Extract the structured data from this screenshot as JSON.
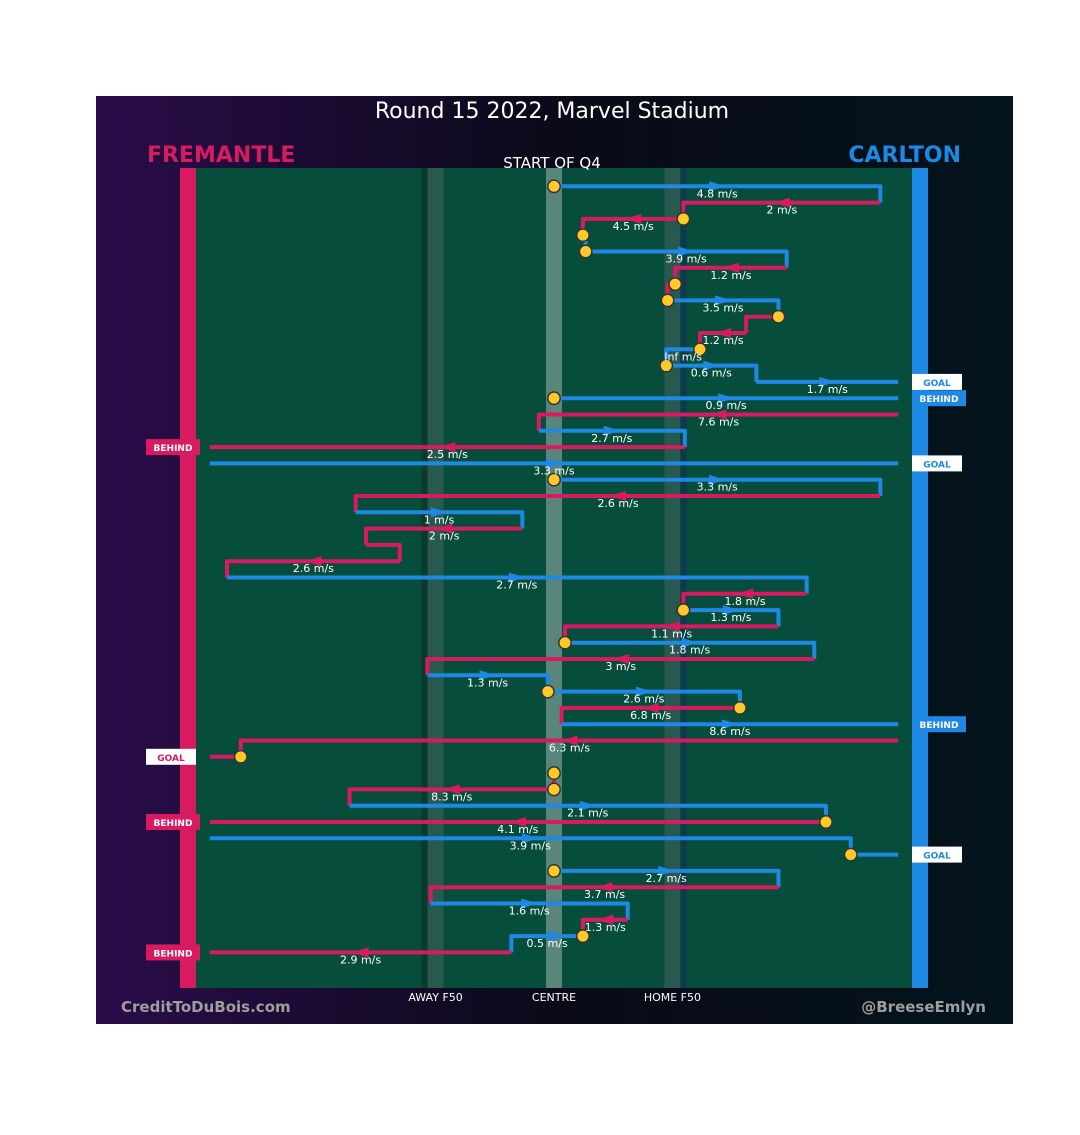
{
  "colors": {
    "home": "#d81b60",
    "away": "#1e88e5",
    "field": "#064e3b",
    "ball": "#ffca28"
  },
  "chart_data": {
    "type": "line",
    "title": "Round 15 2022, Marvel Stadium",
    "subtitle": "START OF Q4",
    "teams": {
      "left": "FREMANTLE",
      "right": "CARLTON"
    },
    "credits": {
      "left": "CreditToDuBois.com",
      "right": "@BreeseEmlyn"
    },
    "xticks": [
      {
        "x": 0.328,
        "label": "AWAY F50"
      },
      {
        "x": 0.5,
        "label": "CENTRE"
      },
      {
        "x": 0.672,
        "label": "HOME F50"
      }
    ],
    "x_domain": [
      -0.02,
      1.02
    ],
    "chains": [
      {
        "team": "C",
        "seq": [
          [
            0.5,
            1
          ],
          [
            0.974,
            1
          ],
          [
            0.974,
            2
          ]
        ],
        "speed": "4.8 m/s",
        "start_dot": true
      },
      {
        "team": "F",
        "seq": [
          [
            0.974,
            2
          ],
          [
            0.688,
            2
          ],
          [
            0.688,
            3
          ]
        ],
        "speed": "2 m/s"
      },
      {
        "team": "F",
        "seq": [
          [
            0.688,
            3
          ],
          [
            0.542,
            3
          ],
          [
            0.542,
            4
          ]
        ],
        "speed": "4.5 m/s",
        "start_dot": true
      },
      {
        "team": "C",
        "seq": [
          [
            0.542,
            4
          ],
          [
            0.546,
            4
          ],
          [
            0.546,
            5
          ]
        ],
        "speed": "",
        "start_dot": true
      },
      {
        "team": "C",
        "seq": [
          [
            0.546,
            5
          ],
          [
            0.838,
            5
          ],
          [
            0.838,
            6
          ]
        ],
        "speed": "3.9 m/s",
        "start_dot": true
      },
      {
        "team": "F",
        "seq": [
          [
            0.838,
            6
          ],
          [
            0.676,
            6
          ],
          [
            0.676,
            7
          ]
        ],
        "speed": "1.2 m/s"
      },
      {
        "team": "F",
        "seq": [
          [
            0.676,
            7
          ],
          [
            0.665,
            7
          ],
          [
            0.665,
            8
          ]
        ],
        "speed": "",
        "start_dot": true
      },
      {
        "team": "C",
        "seq": [
          [
            0.665,
            8
          ],
          [
            0.826,
            8
          ],
          [
            0.826,
            9
          ]
        ],
        "speed": "3.5 m/s",
        "start_dot": true
      },
      {
        "team": "F",
        "seq": [
          [
            0.826,
            9
          ],
          [
            0.779,
            9
          ],
          [
            0.779,
            10
          ]
        ],
        "speed": "",
        "start_dot": true
      },
      {
        "team": "F",
        "seq": [
          [
            0.779,
            10
          ],
          [
            0.712,
            10
          ],
          [
            0.712,
            11
          ]
        ],
        "speed": "1.2 m/s"
      },
      {
        "team": "C",
        "seq": [
          [
            0.712,
            11
          ],
          [
            0.663,
            11
          ],
          [
            0.663,
            12
          ]
        ],
        "speed": "Inf m/s",
        "start_dot": true
      },
      {
        "team": "C",
        "seq": [
          [
            0.663,
            12
          ],
          [
            0.794,
            12
          ],
          [
            0.794,
            13
          ]
        ],
        "speed": "0.6 m/s",
        "start_dot": true
      },
      {
        "team": "C",
        "seq": [
          [
            0.794,
            13
          ],
          [
            1.0,
            13
          ]
        ],
        "speed": "1.7 m/s",
        "end_label": "GOAL"
      },
      {
        "team": "C",
        "seq": [
          [
            0.5,
            14
          ],
          [
            1.0,
            14
          ]
        ],
        "speed": "0.9 m/s",
        "start_dot": true,
        "end_label": "BEHIND"
      },
      {
        "team": "F",
        "seq": [
          [
            1.0,
            15
          ],
          [
            0.478,
            15
          ],
          [
            0.478,
            16
          ]
        ],
        "speed": "7.6 m/s"
      },
      {
        "team": "C",
        "seq": [
          [
            0.478,
            16
          ],
          [
            0.69,
            16
          ],
          [
            0.69,
            17
          ]
        ],
        "speed": "2.7 m/s"
      },
      {
        "team": "F",
        "seq": [
          [
            0.69,
            17
          ],
          [
            0.0,
            17
          ]
        ],
        "speed": "2.5 m/s",
        "end_label": "BEHIND"
      },
      {
        "team": "C",
        "seq": [
          [
            0.0,
            18
          ],
          [
            1.0,
            18
          ]
        ],
        "speed": "3.3 m/s",
        "end_label": "GOAL"
      },
      {
        "team": "C",
        "seq": [
          [
            0.5,
            19
          ],
          [
            0.974,
            19
          ],
          [
            0.974,
            20
          ]
        ],
        "speed": "3.3 m/s",
        "start_dot": true
      },
      {
        "team": "F",
        "seq": [
          [
            0.974,
            20
          ],
          [
            0.212,
            20
          ],
          [
            0.212,
            21
          ]
        ],
        "speed": "2.6 m/s"
      },
      {
        "team": "C",
        "seq": [
          [
            0.212,
            21
          ],
          [
            0.454,
            21
          ],
          [
            0.454,
            22
          ]
        ],
        "speed": "1 m/s"
      },
      {
        "team": "F",
        "seq": [
          [
            0.454,
            22
          ],
          [
            0.227,
            22
          ],
          [
            0.227,
            23
          ]
        ],
        "speed": "2 m/s"
      },
      {
        "team": "F",
        "seq": [
          [
            0.227,
            23
          ],
          [
            0.276,
            23
          ],
          [
            0.276,
            24
          ]
        ],
        "speed": ""
      },
      {
        "team": "F",
        "seq": [
          [
            0.276,
            24
          ],
          [
            0.025,
            24
          ],
          [
            0.025,
            25
          ]
        ],
        "speed": "2.6 m/s"
      },
      {
        "team": "C",
        "seq": [
          [
            0.025,
            25
          ],
          [
            0.867,
            25
          ],
          [
            0.867,
            26
          ]
        ],
        "speed": "2.7 m/s"
      },
      {
        "team": "F",
        "seq": [
          [
            0.867,
            26
          ],
          [
            0.688,
            26
          ],
          [
            0.688,
            27
          ]
        ],
        "speed": "1.8 m/s"
      },
      {
        "team": "C",
        "seq": [
          [
            0.688,
            27
          ],
          [
            0.826,
            27
          ],
          [
            0.826,
            28
          ]
        ],
        "speed": "1.3 m/s",
        "start_dot": true
      },
      {
        "team": "F",
        "seq": [
          [
            0.826,
            28
          ],
          [
            0.516,
            28
          ],
          [
            0.516,
            29
          ]
        ],
        "speed": "1.1 m/s"
      },
      {
        "team": "C",
        "seq": [
          [
            0.516,
            29
          ],
          [
            0.878,
            29
          ],
          [
            0.878,
            30
          ]
        ],
        "speed": "1.8 m/s",
        "start_dot": true
      },
      {
        "team": "F",
        "seq": [
          [
            0.878,
            30
          ],
          [
            0.316,
            30
          ],
          [
            0.316,
            31
          ]
        ],
        "speed": "3 m/s"
      },
      {
        "team": "C",
        "seq": [
          [
            0.316,
            31
          ],
          [
            0.491,
            31
          ],
          [
            0.491,
            32
          ]
        ],
        "speed": "1.3 m/s"
      },
      {
        "team": "C",
        "seq": [
          [
            0.491,
            32
          ],
          [
            0.77,
            32
          ],
          [
            0.77,
            33
          ]
        ],
        "speed": "2.6 m/s",
        "start_dot": true
      },
      {
        "team": "F",
        "seq": [
          [
            0.77,
            33
          ],
          [
            0.511,
            33
          ],
          [
            0.511,
            34
          ]
        ],
        "speed": "6.8 m/s",
        "start_dot": true
      },
      {
        "team": "C",
        "seq": [
          [
            0.511,
            34
          ],
          [
            1.0,
            34
          ]
        ],
        "speed": "8.6 m/s",
        "end_label": "BEHIND"
      },
      {
        "team": "F",
        "seq": [
          [
            1.0,
            35
          ],
          [
            0.045,
            35
          ],
          [
            0.045,
            36
          ],
          [
            0.0,
            36
          ]
        ],
        "speed": "6.3 m/s",
        "end_dot": true,
        "end_label": "GOAL"
      },
      {
        "team": "F",
        "seq": [
          [
            0.5,
            37
          ],
          [
            0.5,
            38
          ]
        ],
        "speed": "",
        "start_dot": true
      },
      {
        "team": "F",
        "seq": [
          [
            0.5,
            38
          ],
          [
            0.203,
            38
          ],
          [
            0.203,
            39
          ]
        ],
        "speed": "8.3 m/s",
        "start_dot": true
      },
      {
        "team": "C",
        "seq": [
          [
            0.203,
            39
          ],
          [
            0.895,
            39
          ],
          [
            0.895,
            40
          ]
        ],
        "speed": "2.1 m/s"
      },
      {
        "team": "F",
        "seq": [
          [
            0.895,
            40
          ],
          [
            0.0,
            40
          ]
        ],
        "speed": "4.1 m/s",
        "start_dot": true,
        "end_label": "BEHIND"
      },
      {
        "team": "C",
        "seq": [
          [
            0.0,
            41
          ],
          [
            0.931,
            41
          ],
          [
            0.931,
            42
          ],
          [
            1.0,
            42
          ]
        ],
        "speed": "3.9 m/s",
        "end_dot": true,
        "end_label": "GOAL"
      },
      {
        "team": "C",
        "seq": [
          [
            0.5,
            43
          ],
          [
            0.826,
            43
          ],
          [
            0.826,
            44
          ]
        ],
        "speed": "2.7 m/s",
        "start_dot": true
      },
      {
        "team": "F",
        "seq": [
          [
            0.826,
            44
          ],
          [
            0.321,
            44
          ],
          [
            0.321,
            45
          ]
        ],
        "speed": "3.7 m/s"
      },
      {
        "team": "C",
        "seq": [
          [
            0.321,
            45
          ],
          [
            0.607,
            45
          ],
          [
            0.607,
            46
          ]
        ],
        "speed": "1.6 m/s"
      },
      {
        "team": "F",
        "seq": [
          [
            0.607,
            46
          ],
          [
            0.542,
            46
          ],
          [
            0.542,
            47
          ]
        ],
        "speed": "1.3 m/s"
      },
      {
        "team": "C",
        "seq": [
          [
            0.542,
            47
          ],
          [
            0.438,
            47
          ],
          [
            0.438,
            48
          ]
        ],
        "speed": "0.5 m/s",
        "start_dot": true
      },
      {
        "team": "F",
        "seq": [
          [
            0.438,
            48
          ],
          [
            0.0,
            48
          ]
        ],
        "speed": "2.9 m/s",
        "end_label": "BEHIND"
      }
    ]
  }
}
